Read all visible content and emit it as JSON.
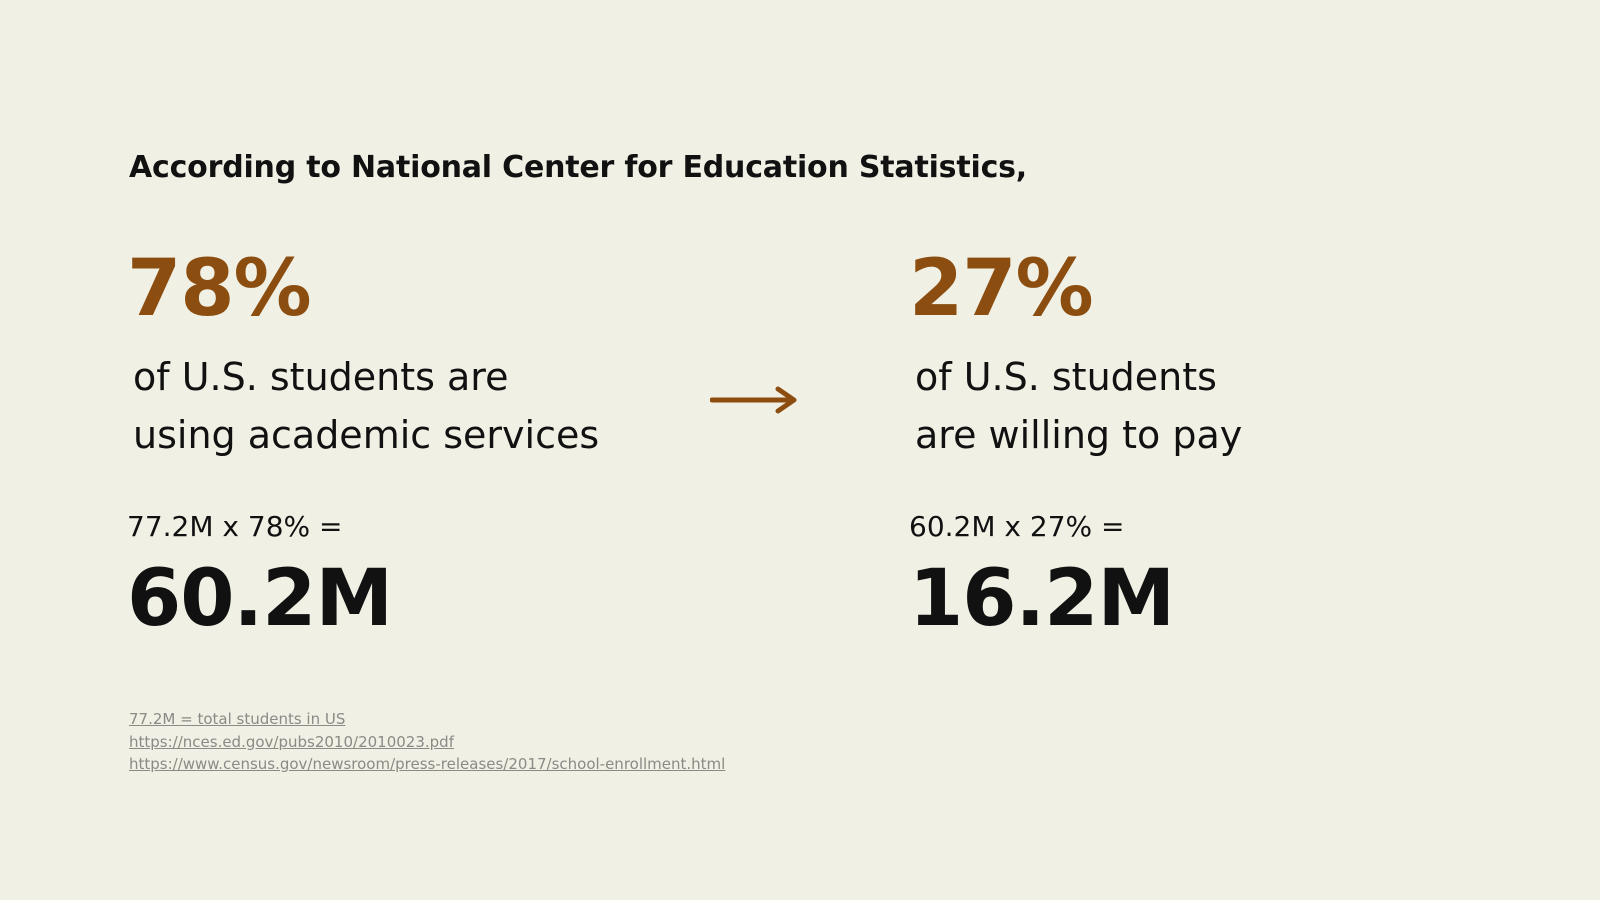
{
  "heading": "According to National Center for Education Statistics,",
  "accent_color": "#8b4e10",
  "left": {
    "percent": "78%",
    "desc_line1": "of U.S. students are",
    "desc_line2": "using academic services",
    "formula": "77.2M x 78% =",
    "result": "60.2M"
  },
  "arrow_icon": "right-arrow-icon",
  "right": {
    "percent": "27%",
    "desc_line1": "of U.S. students",
    "desc_line2": "are willing to pay",
    "formula": "60.2M x 27% =",
    "result": "16.2M"
  },
  "footnotes": {
    "note": "77.2M = total students in US",
    "link1": "https://nces.ed.gov/pubs2010/2010023.pdf",
    "link2": "https://www.census.gov/newsroom/press-releases/2017/school-enrollment.html"
  }
}
